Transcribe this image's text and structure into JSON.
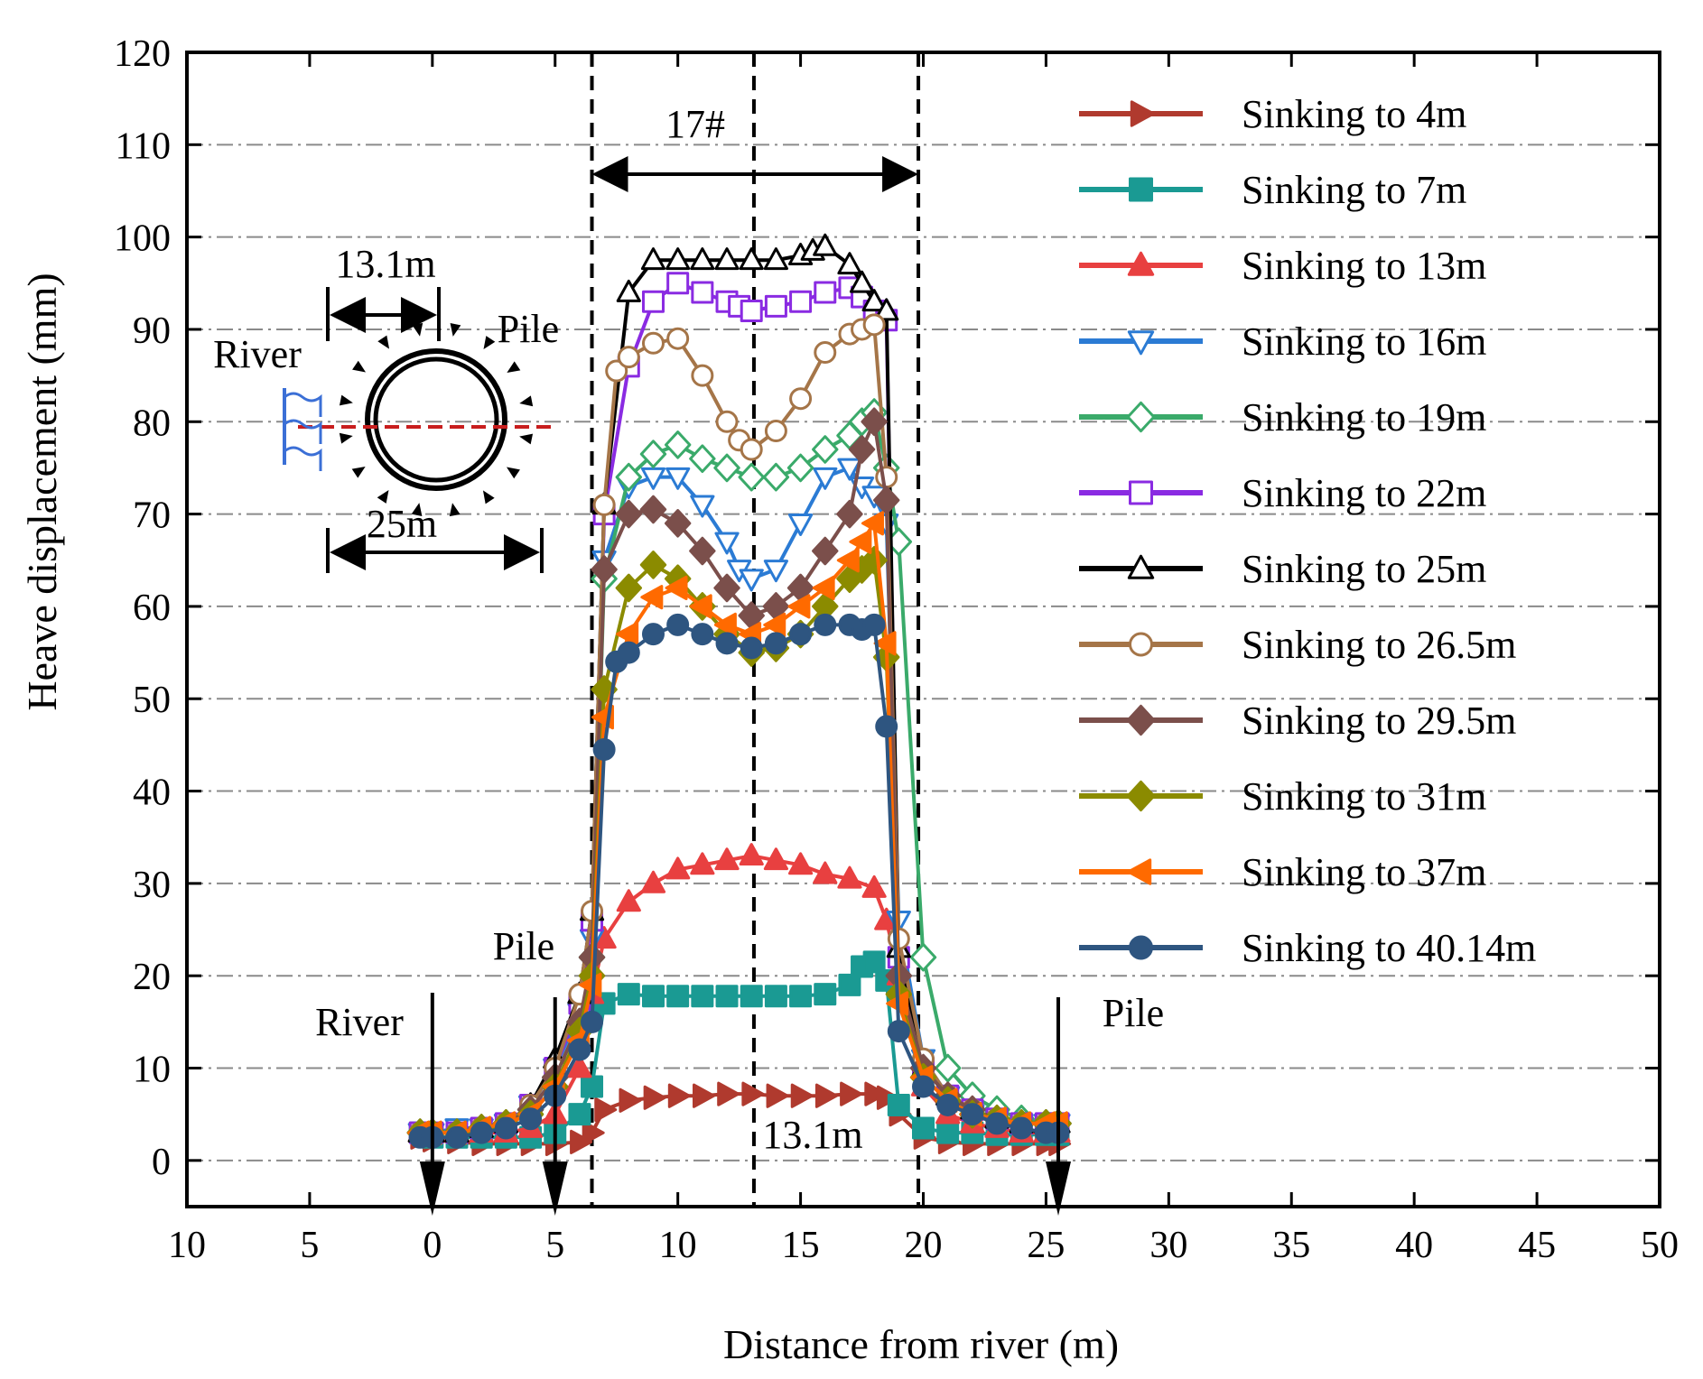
{
  "chart_data": {
    "type": "line",
    "xlabel": "Distance from river (m)",
    "ylabel": "Heave displacement (mm)",
    "xlim": [
      -10,
      50
    ],
    "ylim": [
      -5,
      120
    ],
    "x_ticks": [
      -10,
      -5,
      0,
      5,
      10,
      15,
      20,
      25,
      30,
      35,
      40,
      45,
      50
    ],
    "x_tick_labels": [
      "10",
      "5",
      "0",
      "5",
      "10",
      "15",
      "20",
      "25",
      "30",
      "35",
      "40",
      "45",
      "50"
    ],
    "y_ticks": [
      0,
      10,
      20,
      30,
      40,
      50,
      60,
      70,
      80,
      90,
      100,
      110,
      120
    ],
    "y_tick_labels": [
      "0",
      "10",
      "20",
      "30",
      "40",
      "50",
      "60",
      "70",
      "80",
      "90",
      "100",
      "110",
      "120"
    ],
    "grid": "horizontal dash-dot",
    "legend_position": "right",
    "series": [
      {
        "name": "Sinking to 4m",
        "color": "#b03a2e",
        "marker": "triangle-right",
        "filled": true,
        "x": [
          -0.5,
          0,
          1,
          2,
          3,
          4,
          5,
          6,
          6.5,
          7,
          8,
          9,
          10,
          11,
          12,
          13,
          14,
          15,
          16,
          17,
          18,
          18.5,
          19,
          20,
          21,
          22,
          23,
          24,
          25,
          25.5
        ],
        "y": [
          2.5,
          2.2,
          2.0,
          1.8,
          1.8,
          1.8,
          1.8,
          2.0,
          3.0,
          5.5,
          6.5,
          6.8,
          7.0,
          7.0,
          7.2,
          7.2,
          7.0,
          7.0,
          7.0,
          7.2,
          7.2,
          6.8,
          5.0,
          2.5,
          2.0,
          1.8,
          1.8,
          1.8,
          1.8,
          1.8
        ]
      },
      {
        "name": "Sinking to 7m",
        "color": "#1a9a93",
        "marker": "square",
        "filled": true,
        "x": [
          -0.5,
          0,
          1,
          2,
          3,
          4,
          5,
          6,
          6.5,
          7,
          8,
          9,
          10,
          11,
          12,
          13,
          14,
          15,
          16,
          17,
          17.5,
          18,
          18.5,
          19,
          20,
          21,
          22,
          23,
          24,
          25,
          25.5
        ],
        "y": [
          3.0,
          2.5,
          2.5,
          2.5,
          2.5,
          2.5,
          3.0,
          5.0,
          8.0,
          17.0,
          18.0,
          17.8,
          17.8,
          17.8,
          17.8,
          17.8,
          17.8,
          17.8,
          18.0,
          19.0,
          21.0,
          21.5,
          19.5,
          6.0,
          3.5,
          3.0,
          3.0,
          2.8,
          2.8,
          2.8,
          2.8
        ]
      },
      {
        "name": "Sinking to 13m",
        "color": "#e84040",
        "marker": "triangle-up",
        "filled": true,
        "x": [
          -0.5,
          0,
          1,
          2,
          3,
          4,
          5,
          6,
          6.5,
          7,
          8,
          9,
          10,
          11,
          12,
          13,
          14,
          15,
          16,
          17,
          18,
          18.5,
          19,
          20,
          21,
          22,
          23,
          24,
          25,
          25.5
        ],
        "y": [
          3.0,
          3.0,
          3.0,
          3.0,
          3.0,
          3.5,
          5.0,
          10.0,
          18.0,
          24.0,
          28.0,
          30.0,
          31.5,
          32.0,
          32.5,
          33.0,
          32.5,
          32.0,
          31.0,
          30.5,
          29.5,
          26.0,
          20.0,
          8.0,
          5.0,
          4.0,
          3.5,
          3.0,
          3.0,
          3.0
        ]
      },
      {
        "name": "Sinking to 16m",
        "color": "#2b7bd4",
        "marker": "triangle-down",
        "filled": false,
        "x": [
          -0.5,
          0,
          1,
          2,
          3,
          4,
          5,
          6,
          6.5,
          7,
          8,
          9,
          10,
          11,
          12,
          12.5,
          13,
          14,
          15,
          16,
          17,
          17.5,
          18,
          18.5,
          19,
          20,
          21,
          22,
          23,
          24,
          25,
          25.5
        ],
        "y": [
          3.0,
          3.0,
          3.5,
          3.5,
          4.0,
          6.0,
          10.0,
          16.0,
          24.0,
          65.0,
          73.0,
          74.0,
          74.0,
          71.0,
          67.0,
          64.0,
          63.0,
          64.0,
          69.0,
          74.0,
          75.0,
          73.0,
          72.0,
          69.0,
          26.0,
          11.0,
          7.0,
          5.0,
          4.5,
          4.0,
          4.0,
          4.0
        ]
      },
      {
        "name": "Sinking to 19m",
        "color": "#3aaa6a",
        "marker": "diamond",
        "filled": false,
        "x": [
          -0.5,
          0,
          1,
          2,
          3,
          4,
          5,
          6,
          6.5,
          7,
          8,
          9,
          10,
          11,
          12,
          13,
          14,
          15,
          16,
          17,
          17.5,
          18,
          18.5,
          19,
          20,
          21,
          22,
          23,
          24,
          25,
          25.5
        ],
        "y": [
          3.0,
          3.0,
          3.0,
          3.5,
          4.0,
          5.5,
          9.0,
          15.0,
          22.0,
          63.0,
          74.0,
          76.5,
          77.5,
          76.0,
          75.0,
          74.0,
          74.0,
          75.0,
          77.0,
          78.5,
          80.0,
          81.0,
          75.0,
          67.0,
          22.0,
          10.0,
          7.0,
          5.5,
          4.5,
          4.0,
          4.0
        ]
      },
      {
        "name": "Sinking to 22m",
        "color": "#8a2be2",
        "marker": "square",
        "filled": false,
        "x": [
          -0.5,
          0,
          1,
          2,
          3,
          4,
          5,
          6,
          6.5,
          7,
          8,
          9,
          10,
          11,
          12,
          12.5,
          13,
          14,
          15,
          16,
          17,
          17.5,
          18,
          18.5,
          19,
          20,
          21,
          22,
          23,
          24,
          25,
          25.5
        ],
        "y": [
          3.0,
          3.0,
          3.0,
          3.5,
          4.0,
          6.0,
          10.0,
          17.0,
          26.0,
          70.0,
          86.0,
          93.0,
          95.0,
          94.0,
          93.0,
          92.5,
          92.0,
          92.5,
          93.0,
          94.0,
          94.5,
          93.5,
          92.0,
          91.0,
          22.0,
          10.0,
          7.0,
          5.5,
          4.5,
          4.0,
          4.0,
          4.0
        ]
      },
      {
        "name": "Sinking to 25m",
        "color": "#000000",
        "marker": "triangle-up",
        "filled": false,
        "x": [
          -0.5,
          0,
          1,
          2,
          3,
          4,
          5,
          6,
          6.5,
          7,
          8,
          9,
          10,
          11,
          12,
          13,
          14,
          15,
          15.5,
          16,
          17,
          17.5,
          18,
          18.5,
          19,
          20,
          21,
          22,
          23,
          24,
          25,
          25.5
        ],
        "y": [
          3.0,
          3.0,
          3.0,
          3.5,
          4.0,
          6.0,
          11.0,
          18.0,
          27.0,
          71.0,
          94.0,
          97.5,
          97.5,
          97.5,
          97.5,
          97.5,
          97.5,
          98.0,
          98.5,
          99.0,
          97.0,
          95.0,
          93.0,
          92.0,
          23.0,
          10.0,
          7.0,
          5.5,
          4.5,
          4.0,
          4.0,
          4.0
        ]
      },
      {
        "name": "Sinking to 26.5m",
        "color": "#a57548",
        "marker": "circle",
        "filled": false,
        "x": [
          -0.5,
          0,
          1,
          2,
          3,
          4,
          5,
          6,
          6.5,
          7,
          7.5,
          8,
          9,
          10,
          11,
          12,
          12.5,
          13,
          14,
          15,
          16,
          17,
          17.5,
          18,
          18.5,
          19,
          20,
          21,
          22,
          23,
          24,
          25,
          25.5
        ],
        "y": [
          3.0,
          3.0,
          3.0,
          3.5,
          4.0,
          6.0,
          10.0,
          18.0,
          27.0,
          71.0,
          85.5,
          87.0,
          88.5,
          89.0,
          85.0,
          80.0,
          78.0,
          77.0,
          79.0,
          82.5,
          87.5,
          89.5,
          90.0,
          90.5,
          74.0,
          24.0,
          11.0,
          7.0,
          5.5,
          4.5,
          4.0,
          4.0,
          4.0
        ]
      },
      {
        "name": "Sinking to 29.5m",
        "color": "#7b4f4b",
        "marker": "diamond",
        "filled": true,
        "x": [
          -0.5,
          0,
          1,
          2,
          3,
          4,
          5,
          6,
          6.5,
          7,
          8,
          9,
          10,
          11,
          12,
          13,
          14,
          15,
          16,
          17,
          17.5,
          18,
          18.5,
          19,
          20,
          21,
          22,
          23,
          24,
          25,
          25.5
        ],
        "y": [
          3.0,
          3.0,
          3.0,
          3.5,
          4.0,
          5.5,
          9.0,
          15.0,
          22.0,
          64.0,
          70.0,
          70.5,
          69.0,
          66.0,
          62.0,
          59.0,
          60.0,
          62.0,
          66.0,
          70.0,
          77.0,
          80.0,
          71.5,
          20.0,
          10.0,
          7.0,
          5.5,
          4.5,
          4.0,
          4.0,
          4.0
        ]
      },
      {
        "name": "Sinking to 31m",
        "color": "#8b8b00",
        "marker": "diamond",
        "filled": true,
        "x": [
          -0.5,
          0,
          1,
          2,
          3,
          4,
          5,
          6,
          6.5,
          7,
          8,
          9,
          10,
          11,
          12,
          13,
          14,
          15,
          16,
          17,
          17.5,
          18,
          18.5,
          19,
          20,
          21,
          22,
          23,
          24,
          25,
          25.5
        ],
        "y": [
          3.0,
          3.0,
          3.0,
          3.5,
          4.0,
          5.0,
          8.0,
          14.0,
          20.0,
          51.0,
          62.0,
          64.5,
          63.0,
          60.0,
          57.0,
          55.0,
          55.5,
          57.0,
          60.0,
          63.0,
          64.0,
          65.0,
          54.5,
          18.0,
          9.0,
          6.5,
          5.0,
          4.5,
          4.0,
          4.0,
          4.0
        ]
      },
      {
        "name": "Sinking to 37m",
        "color": "#ff6a00",
        "marker": "triangle-left",
        "filled": true,
        "x": [
          -0.5,
          0,
          1,
          2,
          3,
          4,
          5,
          6,
          6.5,
          7,
          8,
          9,
          10,
          11,
          12,
          13,
          14,
          15,
          16,
          17,
          17.5,
          18,
          18.5,
          19,
          20,
          21,
          22,
          23,
          24,
          25,
          25.5
        ],
        "y": [
          3.0,
          3.0,
          3.0,
          3.5,
          4.0,
          5.0,
          8.0,
          13.0,
          19.0,
          48.0,
          57.0,
          61.0,
          62.0,
          60.0,
          58.0,
          57.0,
          58.0,
          60.0,
          62.0,
          65.0,
          67.0,
          69.0,
          56.0,
          17.0,
          9.0,
          6.5,
          5.0,
          4.5,
          4.0,
          4.0,
          4.0
        ]
      },
      {
        "name": "Sinking to 40.14m",
        "color": "#2e5580",
        "marker": "circle",
        "filled": true,
        "x": [
          -0.5,
          0,
          1,
          2,
          3,
          4,
          5,
          6,
          6.5,
          7,
          7.5,
          8,
          9,
          10,
          11,
          12,
          13,
          14,
          15,
          16,
          17,
          17.5,
          18,
          18.5,
          19,
          20,
          21,
          22,
          23,
          24,
          25,
          25.5
        ],
        "y": [
          2.5,
          2.5,
          2.5,
          3.0,
          3.5,
          4.5,
          7.0,
          12.0,
          15.0,
          44.5,
          54.0,
          55.0,
          57.0,
          58.0,
          57.0,
          56.0,
          55.5,
          56.0,
          57.0,
          58.0,
          58.0,
          57.5,
          58.0,
          47.0,
          14.0,
          8.0,
          6.0,
          5.0,
          4.0,
          3.5,
          3.0,
          3.0
        ]
      }
    ],
    "vertical_lines": [
      6.5,
      13.1,
      19.8
    ],
    "annotations": {
      "span_label": "17#",
      "center_label": "13.1m",
      "arrow_labels": [
        {
          "text": "River",
          "x": 0
        },
        {
          "text": "Pile",
          "x": 5
        },
        {
          "text": "Pile",
          "x": 25.5
        }
      ]
    },
    "inset": {
      "river": "River",
      "pile": "Pile",
      "dim_top": "13.1m",
      "dim_bottom": "25m"
    }
  }
}
